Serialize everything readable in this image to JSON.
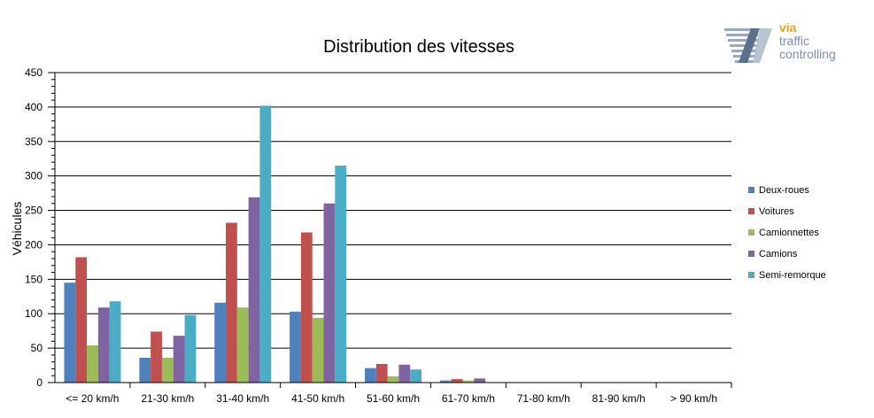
{
  "logo": {
    "line1": "via",
    "line2": "traffic",
    "line3": "controlling",
    "colors": {
      "accent": "#E8A31E",
      "text": "#7C8FA8"
    }
  },
  "chart_data": {
    "type": "bar",
    "title": "Distribution des vitesses",
    "xlabel": "",
    "ylabel": "Véhicules",
    "ylim": [
      0,
      450
    ],
    "yticks": [
      0,
      50,
      100,
      150,
      200,
      250,
      300,
      350,
      400,
      450
    ],
    "grid": true,
    "legend_position": "right",
    "categories": [
      "<= 20 km/h",
      "21-30 km/h",
      "31-40 km/h",
      "41-50 km/h",
      "51-60 km/h",
      "61-70 km/h",
      "71-80 km/h",
      "81-90 km/h",
      "> 90 km/h"
    ],
    "series": [
      {
        "name": "Deux-roues",
        "color": "#4F81BD",
        "values": [
          145,
          36,
          116,
          103,
          21,
          3,
          0,
          0,
          0
        ]
      },
      {
        "name": "Voitures",
        "color": "#C0504D",
        "values": [
          182,
          74,
          232,
          218,
          27,
          5,
          0,
          0,
          0
        ]
      },
      {
        "name": "Camionnettes",
        "color": "#9BBB59",
        "values": [
          54,
          36,
          109,
          94,
          9,
          3,
          0,
          0,
          0
        ]
      },
      {
        "name": "Camions",
        "color": "#8064A2",
        "values": [
          109,
          68,
          269,
          260,
          26,
          6,
          0,
          0,
          0
        ]
      },
      {
        "name": "Semi-remorque",
        "color": "#4BACC6",
        "values": [
          118,
          98,
          402,
          315,
          19,
          0,
          0,
          0,
          0
        ]
      }
    ]
  }
}
